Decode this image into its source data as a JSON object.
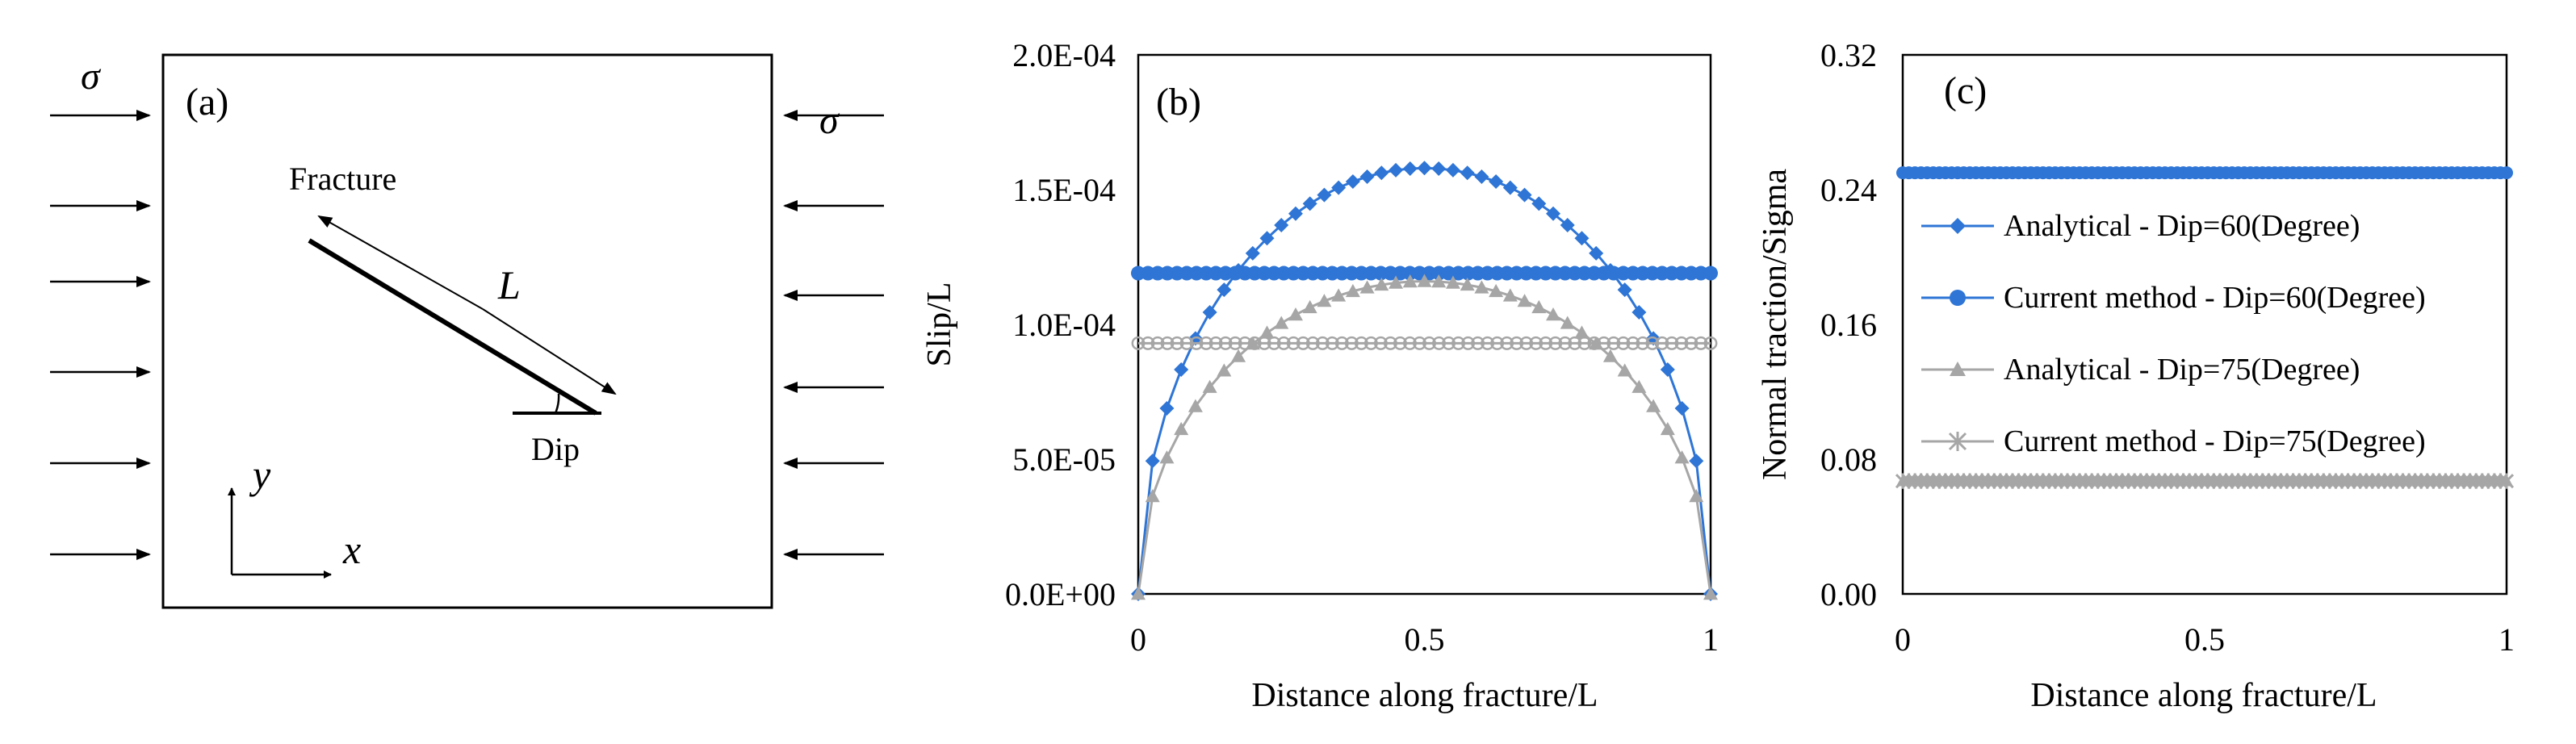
{
  "panel_a": {
    "label": "(a)",
    "sigma_left": "σ",
    "sigma_right": "σ",
    "fracture_label": "Fracture",
    "length_label": "L",
    "dip_label": "Dip",
    "y_axis_label": "y",
    "x_axis_label": "x"
  },
  "chart_data": [
    {
      "type": "line",
      "panel_label": "(b)",
      "title": "",
      "xlabel": "Distance along fracture/L",
      "ylabel": "Slip/L",
      "xlim": [
        0,
        1
      ],
      "ylim": [
        0,
        0.0002
      ],
      "xticks": [
        0,
        0.5,
        1
      ],
      "xtick_labels": [
        "0",
        "0.5",
        "1"
      ],
      "yticks": [
        0,
        5e-05,
        0.0001,
        0.00015,
        0.0002
      ],
      "ytick_labels": [
        "0.0E+00",
        "5.0E-05",
        "1.0E-04",
        "1.5E-04",
        "2.0E-04"
      ],
      "grid": false,
      "legend": "none",
      "series": [
        {
          "color": "#2e75d6",
          "marker": "diamond",
          "kind": "semi_ellipse",
          "peak": 0.000158,
          "n_points": 41
        },
        {
          "color": "#2e75d6",
          "marker": "circle",
          "kind": "constant",
          "value": 0.000119,
          "n_points": 60
        },
        {
          "color": "#a6a6a6",
          "marker": "triangle",
          "kind": "semi_ellipse",
          "peak": 0.000116,
          "n_points": 41
        },
        {
          "color": "#a6a6a6",
          "marker": "ring",
          "kind": "constant",
          "value": 9.3e-05,
          "n_points": 60
        }
      ]
    },
    {
      "type": "line",
      "panel_label": "(c)",
      "title": "",
      "xlabel": "Distance along fracture/L",
      "ylabel": "Normal traction/Sigma",
      "xlim": [
        0,
        1
      ],
      "ylim": [
        0,
        0.32
      ],
      "xticks": [
        0,
        0.5,
        1
      ],
      "xtick_labels": [
        "0",
        "0.5",
        "1"
      ],
      "yticks": [
        0,
        0.08,
        0.16,
        0.24,
        0.32
      ],
      "ytick_labels": [
        "0.00",
        "0.08",
        "0.16",
        "0.24",
        "0.32"
      ],
      "grid": false,
      "legend": "inside-left",
      "series": [
        {
          "name": "Analytical - Dip=60(Degree)",
          "color": "#2e75d6",
          "marker": "diamond",
          "kind": "constant",
          "value": 0.25,
          "n_points": 100
        },
        {
          "name": "Current method - Dip=60(Degree)",
          "color": "#2e75d6",
          "marker": "circle",
          "kind": "constant",
          "value": 0.25,
          "n_points": 100
        },
        {
          "name": "Analytical - Dip=75(Degree)",
          "color": "#a6a6a6",
          "marker": "triangle",
          "kind": "constant",
          "value": 0.067,
          "n_points": 100
        },
        {
          "name": "Current method - Dip=75(Degree)",
          "color": "#a6a6a6",
          "marker": "star",
          "kind": "constant",
          "value": 0.067,
          "n_points": 100
        }
      ]
    }
  ]
}
